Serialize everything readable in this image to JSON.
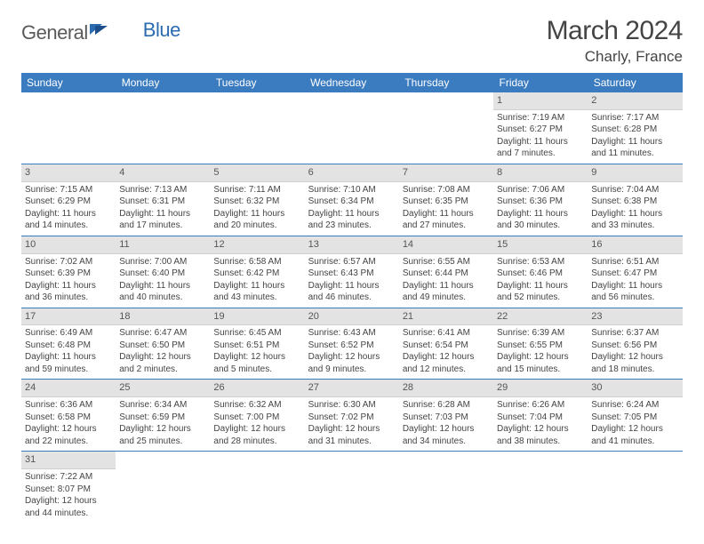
{
  "logo": {
    "part1": "General",
    "part2": "Blue"
  },
  "title": "March 2024",
  "location": "Charly, France",
  "colors": {
    "header_bg": "#3b7bbf",
    "header_text": "#ffffff",
    "daynum_bg": "#e3e3e3",
    "row_border": "#3b7bbf",
    "body_text": "#444444",
    "logo_gray": "#5a5a5a",
    "logo_blue": "#2b6cb0"
  },
  "typography": {
    "title_fontsize": 30,
    "location_fontsize": 17,
    "dayheader_fontsize": 12,
    "cell_fontsize": 10
  },
  "day_headers": [
    "Sunday",
    "Monday",
    "Tuesday",
    "Wednesday",
    "Thursday",
    "Friday",
    "Saturday"
  ],
  "weeks": [
    [
      {
        "blank": true
      },
      {
        "blank": true
      },
      {
        "blank": true
      },
      {
        "blank": true
      },
      {
        "blank": true
      },
      {
        "n": "1",
        "sunrise": "Sunrise: 7:19 AM",
        "sunset": "Sunset: 6:27 PM",
        "daylight": "Daylight: 11 hours and 7 minutes."
      },
      {
        "n": "2",
        "sunrise": "Sunrise: 7:17 AM",
        "sunset": "Sunset: 6:28 PM",
        "daylight": "Daylight: 11 hours and 11 minutes."
      }
    ],
    [
      {
        "n": "3",
        "sunrise": "Sunrise: 7:15 AM",
        "sunset": "Sunset: 6:29 PM",
        "daylight": "Daylight: 11 hours and 14 minutes."
      },
      {
        "n": "4",
        "sunrise": "Sunrise: 7:13 AM",
        "sunset": "Sunset: 6:31 PM",
        "daylight": "Daylight: 11 hours and 17 minutes."
      },
      {
        "n": "5",
        "sunrise": "Sunrise: 7:11 AM",
        "sunset": "Sunset: 6:32 PM",
        "daylight": "Daylight: 11 hours and 20 minutes."
      },
      {
        "n": "6",
        "sunrise": "Sunrise: 7:10 AM",
        "sunset": "Sunset: 6:34 PM",
        "daylight": "Daylight: 11 hours and 23 minutes."
      },
      {
        "n": "7",
        "sunrise": "Sunrise: 7:08 AM",
        "sunset": "Sunset: 6:35 PM",
        "daylight": "Daylight: 11 hours and 27 minutes."
      },
      {
        "n": "8",
        "sunrise": "Sunrise: 7:06 AM",
        "sunset": "Sunset: 6:36 PM",
        "daylight": "Daylight: 11 hours and 30 minutes."
      },
      {
        "n": "9",
        "sunrise": "Sunrise: 7:04 AM",
        "sunset": "Sunset: 6:38 PM",
        "daylight": "Daylight: 11 hours and 33 minutes."
      }
    ],
    [
      {
        "n": "10",
        "sunrise": "Sunrise: 7:02 AM",
        "sunset": "Sunset: 6:39 PM",
        "daylight": "Daylight: 11 hours and 36 minutes."
      },
      {
        "n": "11",
        "sunrise": "Sunrise: 7:00 AM",
        "sunset": "Sunset: 6:40 PM",
        "daylight": "Daylight: 11 hours and 40 minutes."
      },
      {
        "n": "12",
        "sunrise": "Sunrise: 6:58 AM",
        "sunset": "Sunset: 6:42 PM",
        "daylight": "Daylight: 11 hours and 43 minutes."
      },
      {
        "n": "13",
        "sunrise": "Sunrise: 6:57 AM",
        "sunset": "Sunset: 6:43 PM",
        "daylight": "Daylight: 11 hours and 46 minutes."
      },
      {
        "n": "14",
        "sunrise": "Sunrise: 6:55 AM",
        "sunset": "Sunset: 6:44 PM",
        "daylight": "Daylight: 11 hours and 49 minutes."
      },
      {
        "n": "15",
        "sunrise": "Sunrise: 6:53 AM",
        "sunset": "Sunset: 6:46 PM",
        "daylight": "Daylight: 11 hours and 52 minutes."
      },
      {
        "n": "16",
        "sunrise": "Sunrise: 6:51 AM",
        "sunset": "Sunset: 6:47 PM",
        "daylight": "Daylight: 11 hours and 56 minutes."
      }
    ],
    [
      {
        "n": "17",
        "sunrise": "Sunrise: 6:49 AM",
        "sunset": "Sunset: 6:48 PM",
        "daylight": "Daylight: 11 hours and 59 minutes."
      },
      {
        "n": "18",
        "sunrise": "Sunrise: 6:47 AM",
        "sunset": "Sunset: 6:50 PM",
        "daylight": "Daylight: 12 hours and 2 minutes."
      },
      {
        "n": "19",
        "sunrise": "Sunrise: 6:45 AM",
        "sunset": "Sunset: 6:51 PM",
        "daylight": "Daylight: 12 hours and 5 minutes."
      },
      {
        "n": "20",
        "sunrise": "Sunrise: 6:43 AM",
        "sunset": "Sunset: 6:52 PM",
        "daylight": "Daylight: 12 hours and 9 minutes."
      },
      {
        "n": "21",
        "sunrise": "Sunrise: 6:41 AM",
        "sunset": "Sunset: 6:54 PM",
        "daylight": "Daylight: 12 hours and 12 minutes."
      },
      {
        "n": "22",
        "sunrise": "Sunrise: 6:39 AM",
        "sunset": "Sunset: 6:55 PM",
        "daylight": "Daylight: 12 hours and 15 minutes."
      },
      {
        "n": "23",
        "sunrise": "Sunrise: 6:37 AM",
        "sunset": "Sunset: 6:56 PM",
        "daylight": "Daylight: 12 hours and 18 minutes."
      }
    ],
    [
      {
        "n": "24",
        "sunrise": "Sunrise: 6:36 AM",
        "sunset": "Sunset: 6:58 PM",
        "daylight": "Daylight: 12 hours and 22 minutes."
      },
      {
        "n": "25",
        "sunrise": "Sunrise: 6:34 AM",
        "sunset": "Sunset: 6:59 PM",
        "daylight": "Daylight: 12 hours and 25 minutes."
      },
      {
        "n": "26",
        "sunrise": "Sunrise: 6:32 AM",
        "sunset": "Sunset: 7:00 PM",
        "daylight": "Daylight: 12 hours and 28 minutes."
      },
      {
        "n": "27",
        "sunrise": "Sunrise: 6:30 AM",
        "sunset": "Sunset: 7:02 PM",
        "daylight": "Daylight: 12 hours and 31 minutes."
      },
      {
        "n": "28",
        "sunrise": "Sunrise: 6:28 AM",
        "sunset": "Sunset: 7:03 PM",
        "daylight": "Daylight: 12 hours and 34 minutes."
      },
      {
        "n": "29",
        "sunrise": "Sunrise: 6:26 AM",
        "sunset": "Sunset: 7:04 PM",
        "daylight": "Daylight: 12 hours and 38 minutes."
      },
      {
        "n": "30",
        "sunrise": "Sunrise: 6:24 AM",
        "sunset": "Sunset: 7:05 PM",
        "daylight": "Daylight: 12 hours and 41 minutes."
      }
    ],
    [
      {
        "n": "31",
        "sunrise": "Sunrise: 7:22 AM",
        "sunset": "Sunset: 8:07 PM",
        "daylight": "Daylight: 12 hours and 44 minutes."
      },
      {
        "blank": true
      },
      {
        "blank": true
      },
      {
        "blank": true
      },
      {
        "blank": true
      },
      {
        "blank": true
      },
      {
        "blank": true
      }
    ]
  ]
}
